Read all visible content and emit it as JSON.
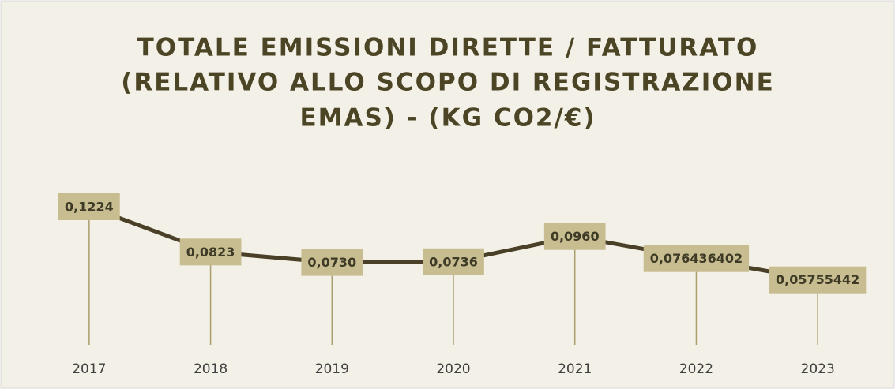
{
  "chart_data": {
    "type": "line",
    "title": [
      "TOTALE EMISSIONI DIRETTE / FATTURATO",
      "(RELATIVO ALLO SCOPO DI REGISTRAZIONE",
      "EMAS) - (KG CO2/€)"
    ],
    "categories": [
      "2017",
      "2018",
      "2019",
      "2020",
      "2021",
      "2022",
      "2023"
    ],
    "values": [
      0.1224,
      0.0823,
      0.073,
      0.0736,
      0.096,
      0.076436402,
      0.05755442
    ],
    "value_labels": [
      "0,1224",
      "0,0823",
      "0,0730",
      "0,0736",
      "0,0960",
      "0,076436402",
      "0,05755442"
    ],
    "color": "#4a4027",
    "label_color": "#c8bd91",
    "drop_line_color": "#a99e6c"
  }
}
